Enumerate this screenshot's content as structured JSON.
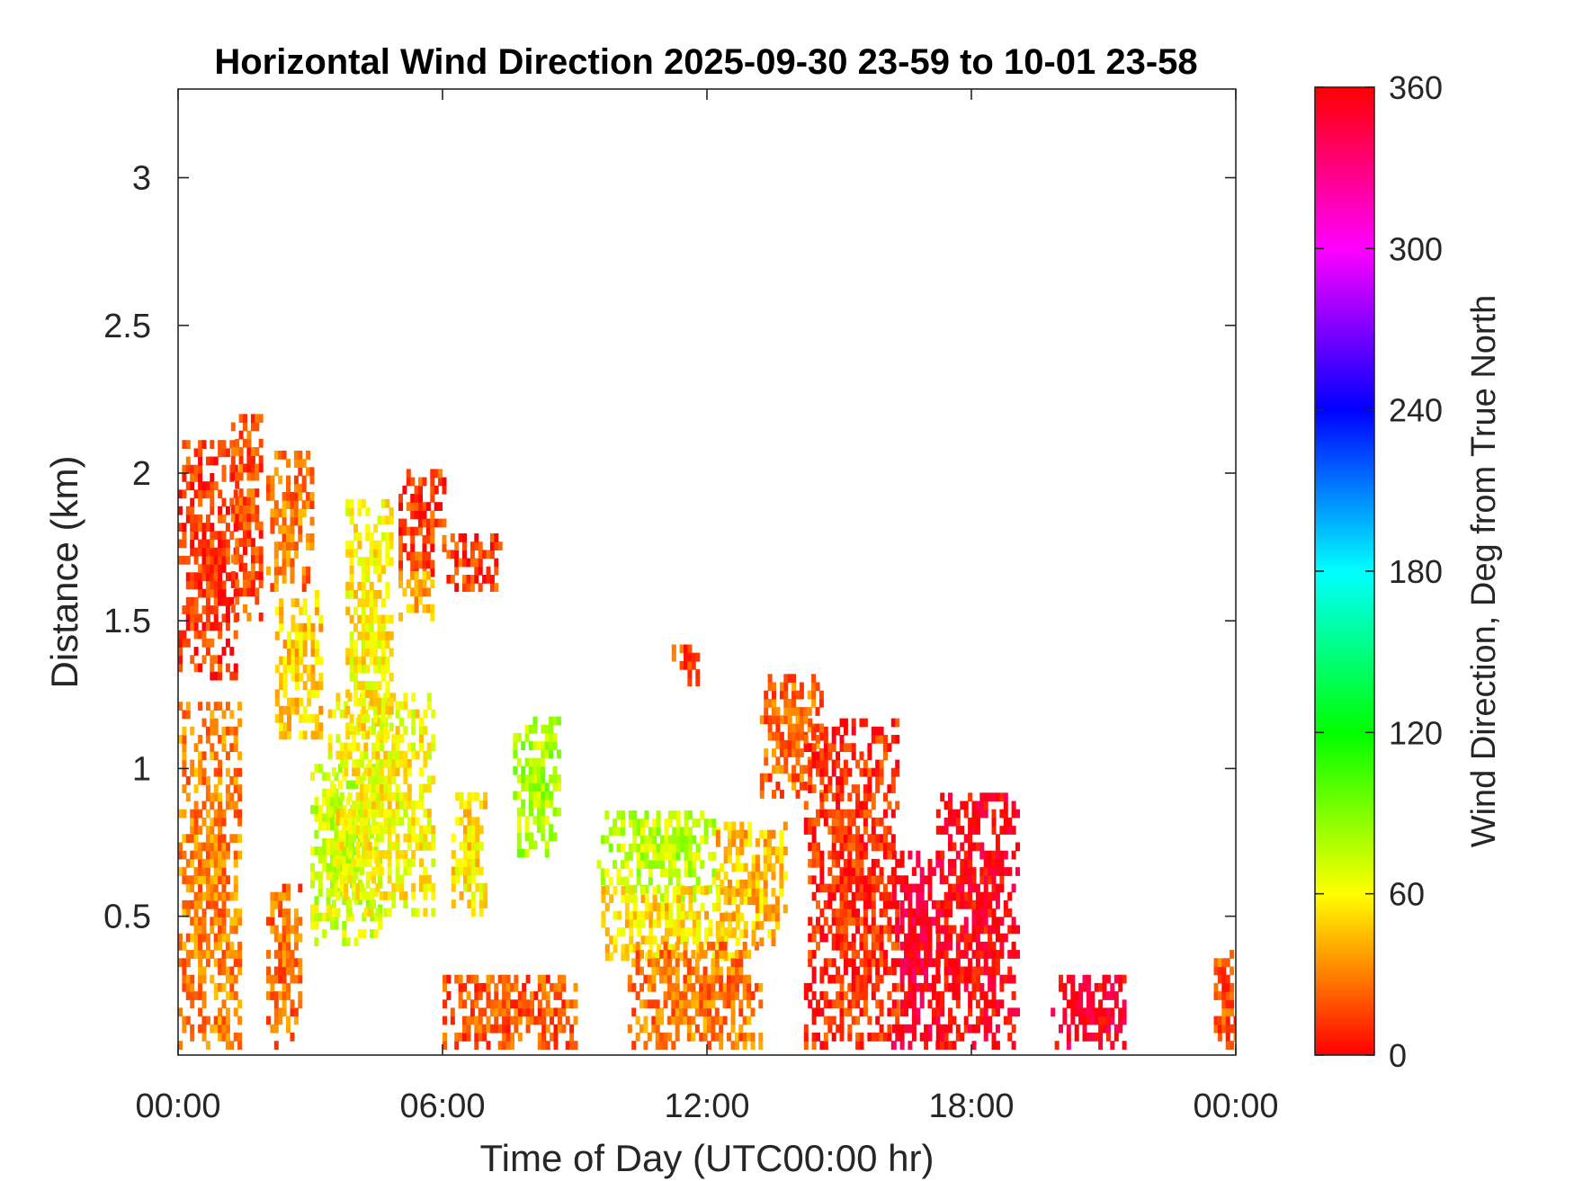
{
  "chart_data": {
    "type": "heatmap",
    "title": "Horizontal Wind Direction 2025-09-30 23-59 to 10-01 23-58",
    "xlabel": "Time of Day (UTC00:00 hr)",
    "ylabel": "Distance (km)",
    "colorbar_label": "Wind Direction, Deg from True North",
    "x_unit": "hours",
    "xlim": [
      0,
      24
    ],
    "ylim": [
      0.03,
      3.3
    ],
    "x_ticks": [
      {
        "value": 0,
        "label": "00:00"
      },
      {
        "value": 6,
        "label": "06:00"
      },
      {
        "value": 12,
        "label": "12:00"
      },
      {
        "value": 18,
        "label": "18:00"
      },
      {
        "value": 24,
        "label": "00:00"
      }
    ],
    "y_ticks": [
      {
        "value": 0.5,
        "label": "0.5"
      },
      {
        "value": 1,
        "label": "1"
      },
      {
        "value": 1.5,
        "label": "1.5"
      },
      {
        "value": 2,
        "label": "2"
      },
      {
        "value": 2.5,
        "label": "2.5"
      },
      {
        "value": 3,
        "label": "3"
      }
    ],
    "colorbar_range": [
      0,
      360
    ],
    "colorbar_ticks": [
      {
        "value": 0,
        "label": "0"
      },
      {
        "value": 60,
        "label": "60"
      },
      {
        "value": 120,
        "label": "120"
      },
      {
        "value": 180,
        "label": "180"
      },
      {
        "value": 240,
        "label": "240"
      },
      {
        "value": 300,
        "label": "300"
      },
      {
        "value": 360,
        "label": "360"
      }
    ],
    "colormap": [
      "#ff0000",
      "#ffff00",
      "#00ff00",
      "#00ffff",
      "#0000ff",
      "#ff00ff",
      "#ff0000"
    ],
    "regions": [
      {
        "t0": 0.0,
        "t1": 1.3,
        "h0": 1.3,
        "h1": 2.1,
        "dir": 12
      },
      {
        "t0": 0.0,
        "t1": 1.4,
        "h0": 0.05,
        "h1": 1.2,
        "dir": 30
      },
      {
        "t0": 1.2,
        "t1": 1.9,
        "h0": 1.5,
        "h1": 2.2,
        "dir": 18
      },
      {
        "t0": 2.0,
        "t1": 3.0,
        "h0": 1.6,
        "h1": 2.05,
        "dir": 28
      },
      {
        "t0": 2.2,
        "t1": 3.2,
        "h0": 1.1,
        "h1": 1.6,
        "dir": 48
      },
      {
        "t0": 2.0,
        "t1": 2.8,
        "h0": 0.05,
        "h1": 0.6,
        "dir": 25
      },
      {
        "t0": 3.0,
        "t1": 4.6,
        "h0": 0.4,
        "h1": 1.0,
        "dir": 72
      },
      {
        "t0": 3.4,
        "t1": 5.8,
        "h0": 0.5,
        "h1": 1.25,
        "dir": 60
      },
      {
        "t0": 3.8,
        "t1": 4.8,
        "h0": 1.1,
        "h1": 1.9,
        "dir": 58
      },
      {
        "t0": 5.0,
        "t1": 6.0,
        "h0": 1.65,
        "h1": 2.0,
        "dir": 15
      },
      {
        "t0": 6.0,
        "t1": 7.3,
        "h0": 1.6,
        "h1": 1.78,
        "dir": 14
      },
      {
        "t0": 5.0,
        "t1": 5.8,
        "h0": 1.5,
        "h1": 1.65,
        "dir": 40
      },
      {
        "t0": 6.2,
        "t1": 7.0,
        "h0": 0.5,
        "h1": 0.9,
        "dir": 55
      },
      {
        "t0": 7.6,
        "t1": 8.6,
        "h0": 0.7,
        "h1": 1.15,
        "dir": 80
      },
      {
        "t0": 6.0,
        "t1": 9.0,
        "h0": 0.05,
        "h1": 0.3,
        "dir": 20
      },
      {
        "t0": 9.5,
        "t1": 12.2,
        "h0": 0.55,
        "h1": 0.85,
        "dir": 75
      },
      {
        "t0": 9.6,
        "t1": 12.6,
        "h0": 0.35,
        "h1": 0.6,
        "dir": 52
      },
      {
        "t0": 10.2,
        "t1": 13.2,
        "h0": 0.05,
        "h1": 0.4,
        "dir": 28
      },
      {
        "t0": 12.2,
        "t1": 13.8,
        "h0": 0.4,
        "h1": 0.8,
        "dir": 45
      },
      {
        "t0": 13.2,
        "t1": 14.6,
        "h0": 0.9,
        "h1": 1.3,
        "dir": 24
      },
      {
        "t0": 14.2,
        "t1": 16.3,
        "h0": 0.05,
        "h1": 1.15,
        "dir": 10
      },
      {
        "t0": 16.2,
        "t1": 17.3,
        "h0": 0.05,
        "h1": 0.7,
        "dir": 350
      },
      {
        "t0": 17.2,
        "t1": 19.0,
        "h0": 0.05,
        "h1": 0.9,
        "dir": 357
      },
      {
        "t0": 11.2,
        "t1": 11.8,
        "h0": 1.28,
        "h1": 1.4,
        "dir": 15
      },
      {
        "t0": 19.8,
        "t1": 21.5,
        "h0": 0.05,
        "h1": 0.3,
        "dir": 352
      },
      {
        "t0": 23.5,
        "t1": 24.0,
        "h0": 0.05,
        "h1": 0.4,
        "dir": 20
      }
    ]
  }
}
